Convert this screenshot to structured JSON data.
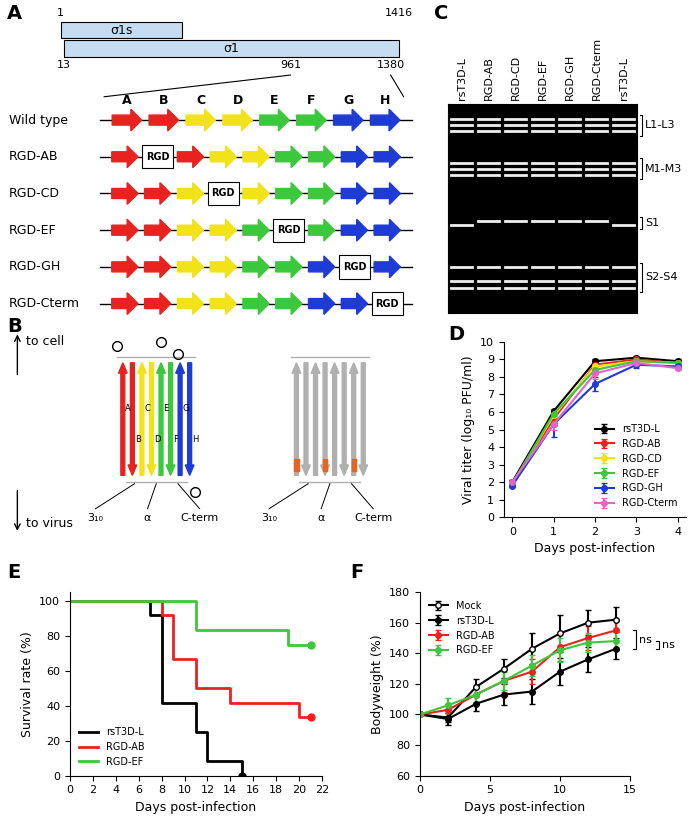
{
  "diagram_A": {
    "panel": "A",
    "gene_start": 1,
    "gene_end": 1416,
    "sigma1_start": 13,
    "head_start": 961,
    "head_end": 1380,
    "sigma1s_label": "σ1s",
    "sigma1_label": "σ1",
    "strands": [
      "A",
      "B",
      "C",
      "D",
      "E",
      "F",
      "G",
      "H"
    ],
    "strand_colors": [
      "#e8231f",
      "#e8231f",
      "#f2e21a",
      "#f2e21a",
      "#3cc83c",
      "#3cc83c",
      "#1f3bd6",
      "#1f3bd6"
    ],
    "insert_label": "RGD",
    "rows": [
      {
        "name": "Wild type",
        "insert_after": null
      },
      {
        "name": "RGD-AB",
        "insert_after": 1
      },
      {
        "name": "RGD-CD",
        "insert_after": 3
      },
      {
        "name": "RGD-EF",
        "insert_after": 5
      },
      {
        "name": "RGD-GH",
        "insert_after": 7
      },
      {
        "name": "RGD-Cterm",
        "insert_after": 8
      }
    ]
  },
  "diagram_B": {
    "panel": "B",
    "top_label": "to cell",
    "bottom_label": "to virus",
    "strands": [
      "A",
      "B",
      "C",
      "D",
      "E",
      "F",
      "G",
      "H"
    ],
    "structure_labels": [
      "3₁₀",
      "α",
      "C-term"
    ]
  },
  "gel_C": {
    "panel": "C",
    "lanes": [
      "rsT3D-L",
      "RGD-AB",
      "RGD-CD",
      "RGD-EF",
      "RGD-GH",
      "RGD-Cterm",
      "rsT3D-L"
    ],
    "segment_groups": [
      "L1-L3",
      "M1-M3",
      "S1",
      "S2-S4"
    ]
  },
  "chart_data": [
    {
      "panel": "D",
      "type": "line",
      "x_label": "Days post-infection",
      "y_label": "Viral titer (log₁₀ PFU/ml)",
      "x": [
        0,
        1,
        2,
        3,
        4
      ],
      "xlim": [
        -0.2,
        4.2
      ],
      "xticks": [
        0,
        1,
        2,
        3,
        4
      ],
      "ylim": [
        0,
        10
      ],
      "yticks": [
        0,
        1,
        2,
        3,
        4,
        5,
        6,
        7,
        8,
        9,
        10
      ],
      "legend": "lower right",
      "marker": "circle",
      "series": [
        {
          "name": "rsT3D-L",
          "color": "#000000",
          "values": [
            2.0,
            6.05,
            8.9,
            9.1,
            8.9
          ],
          "errors": [
            0.1,
            0.1,
            0.1,
            0.1,
            0.1
          ]
        },
        {
          "name": "RGD-AB",
          "color": "#e8231f",
          "values": [
            1.9,
            5.6,
            8.7,
            9.0,
            8.8
          ],
          "errors": [
            0.1,
            0.2,
            0.1,
            0.1,
            0.1
          ]
        },
        {
          "name": "RGD-CD",
          "color": "#f2e21a",
          "values": [
            1.9,
            5.8,
            8.6,
            8.9,
            8.8
          ],
          "errors": [
            0.1,
            0.2,
            0.1,
            0.1,
            0.1
          ]
        },
        {
          "name": "RGD-EF",
          "color": "#3cc83c",
          "values": [
            1.9,
            5.9,
            8.4,
            8.9,
            8.8
          ],
          "errors": [
            0.1,
            0.2,
            0.2,
            0.1,
            0.1
          ]
        },
        {
          "name": "RGD-GH",
          "color": "#1f3bd6",
          "values": [
            1.8,
            5.3,
            7.6,
            8.7,
            8.6
          ],
          "errors": [
            0.1,
            0.7,
            0.4,
            0.2,
            0.1
          ]
        },
        {
          "name": "RGD-Cterm",
          "color": "#e066c8",
          "values": [
            2.0,
            5.3,
            8.2,
            8.8,
            8.5
          ],
          "errors": [
            0.1,
            0.3,
            0.3,
            0.1,
            0.1
          ]
        }
      ]
    },
    {
      "panel": "E",
      "type": "step",
      "x_label": "Days post-infection",
      "y_label": "Survival rate (%)",
      "xlim": [
        0,
        22
      ],
      "xticks": [
        0,
        2,
        4,
        6,
        8,
        10,
        12,
        14,
        16,
        18,
        20,
        22
      ],
      "ylim": [
        0,
        105
      ],
      "yticks": [
        0,
        20,
        40,
        60,
        80,
        100
      ],
      "legend": "lower left",
      "marker": "circle",
      "series": [
        {
          "name": "rsT3D-L",
          "color": "#000000",
          "x": [
            0,
            7,
            8,
            11,
            12,
            15
          ],
          "values": [
            100,
            91.7,
            41.7,
            25,
            8.3,
            0
          ]
        },
        {
          "name": "RGD-AB",
          "color": "#e8231f",
          "x": [
            0,
            8,
            9,
            11,
            14,
            20,
            21
          ],
          "values": [
            100,
            91.7,
            66.7,
            50,
            41.7,
            33.3,
            33.3
          ]
        },
        {
          "name": "RGD-EF",
          "color": "#3cc83c",
          "x": [
            0,
            11,
            19,
            21
          ],
          "values": [
            100,
            83.3,
            75,
            75
          ]
        }
      ]
    },
    {
      "panel": "F",
      "type": "line",
      "x_label": "Days post-infection",
      "y_label": "Bodyweight (%)",
      "x": [
        0,
        2,
        4,
        6,
        8,
        10,
        12,
        14
      ],
      "xlim": [
        0,
        15
      ],
      "xticks": [
        0,
        5,
        10,
        15
      ],
      "ylim": [
        60,
        180
      ],
      "yticks": [
        60,
        80,
        100,
        120,
        140,
        160,
        180
      ],
      "legend": "upper left",
      "series": [
        {
          "name": "Mock",
          "color": "#000000",
          "marker": "open_circle",
          "values": [
            100,
            98,
            118,
            130,
            143,
            153,
            160,
            162
          ],
          "errors": [
            0,
            3,
            5,
            6,
            10,
            12,
            8,
            8
          ]
        },
        {
          "name": "rsT3D-L",
          "color": "#000000",
          "marker": "circle",
          "values": [
            100,
            97,
            107,
            113,
            115,
            128,
            136,
            143
          ],
          "errors": [
            0,
            4,
            5,
            7,
            8,
            9,
            8,
            7
          ]
        },
        {
          "name": "RGD-AB",
          "color": "#e8231f",
          "marker": "circle",
          "values": [
            100,
            103,
            113,
            122,
            128,
            144,
            150,
            155
          ],
          "errors": [
            0,
            4,
            6,
            7,
            8,
            9,
            8,
            7
          ]
        },
        {
          "name": "RGD-EF",
          "color": "#3cc83c",
          "marker": "circle",
          "values": [
            100,
            106,
            113,
            122,
            132,
            142,
            147,
            148
          ],
          "errors": [
            0,
            5,
            5,
            6,
            7,
            8,
            6,
            6
          ]
        }
      ],
      "annotations": [
        {
          "text": "ns",
          "between": [
            "rsT3D-L",
            "RGD-AB"
          ]
        },
        {
          "text": "ns",
          "between": [
            "rsT3D-L",
            "RGD-EF"
          ]
        }
      ]
    }
  ]
}
